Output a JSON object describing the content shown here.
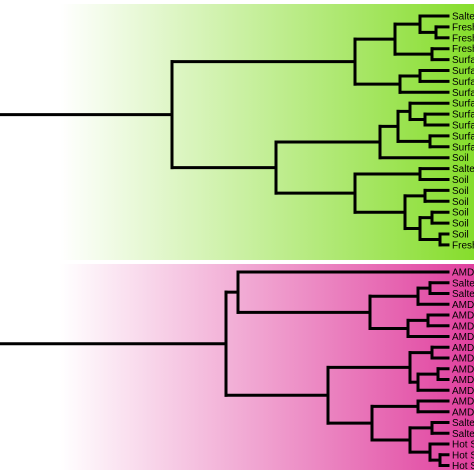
{
  "colors": {
    "top_group_gradient": [
      "#ffffff",
      "#86dd2c"
    ],
    "bottom_group_gradient": [
      "#ffffff",
      "#e0409e"
    ],
    "branch": "#000000",
    "label": "#000000"
  },
  "groups": [
    {
      "id": "top",
      "labels": [
        "Salte",
        "Fresh",
        "Fresh",
        "Fresh",
        "Surfa",
        "Surfa",
        "Surfa",
        "Surfa",
        "Surfa",
        "Surfa",
        "Surfa",
        "Surfa",
        "Surfa",
        "Soil",
        "Salte",
        "Soil",
        "Soil",
        "Soil",
        "Soil",
        "Soil",
        "Soil",
        "Fresh"
      ]
    },
    {
      "id": "bottom",
      "labels": [
        "AMD",
        "Salte",
        "Salte",
        "AMD",
        "AMD",
        "AMD",
        "AMD",
        "AMD",
        "AMD",
        "AMD",
        "AMD",
        "AMD",
        "AMD",
        "AMD",
        "Salte",
        "Salte",
        "Hot S",
        "Hot S",
        "Hot S"
      ]
    }
  ]
}
